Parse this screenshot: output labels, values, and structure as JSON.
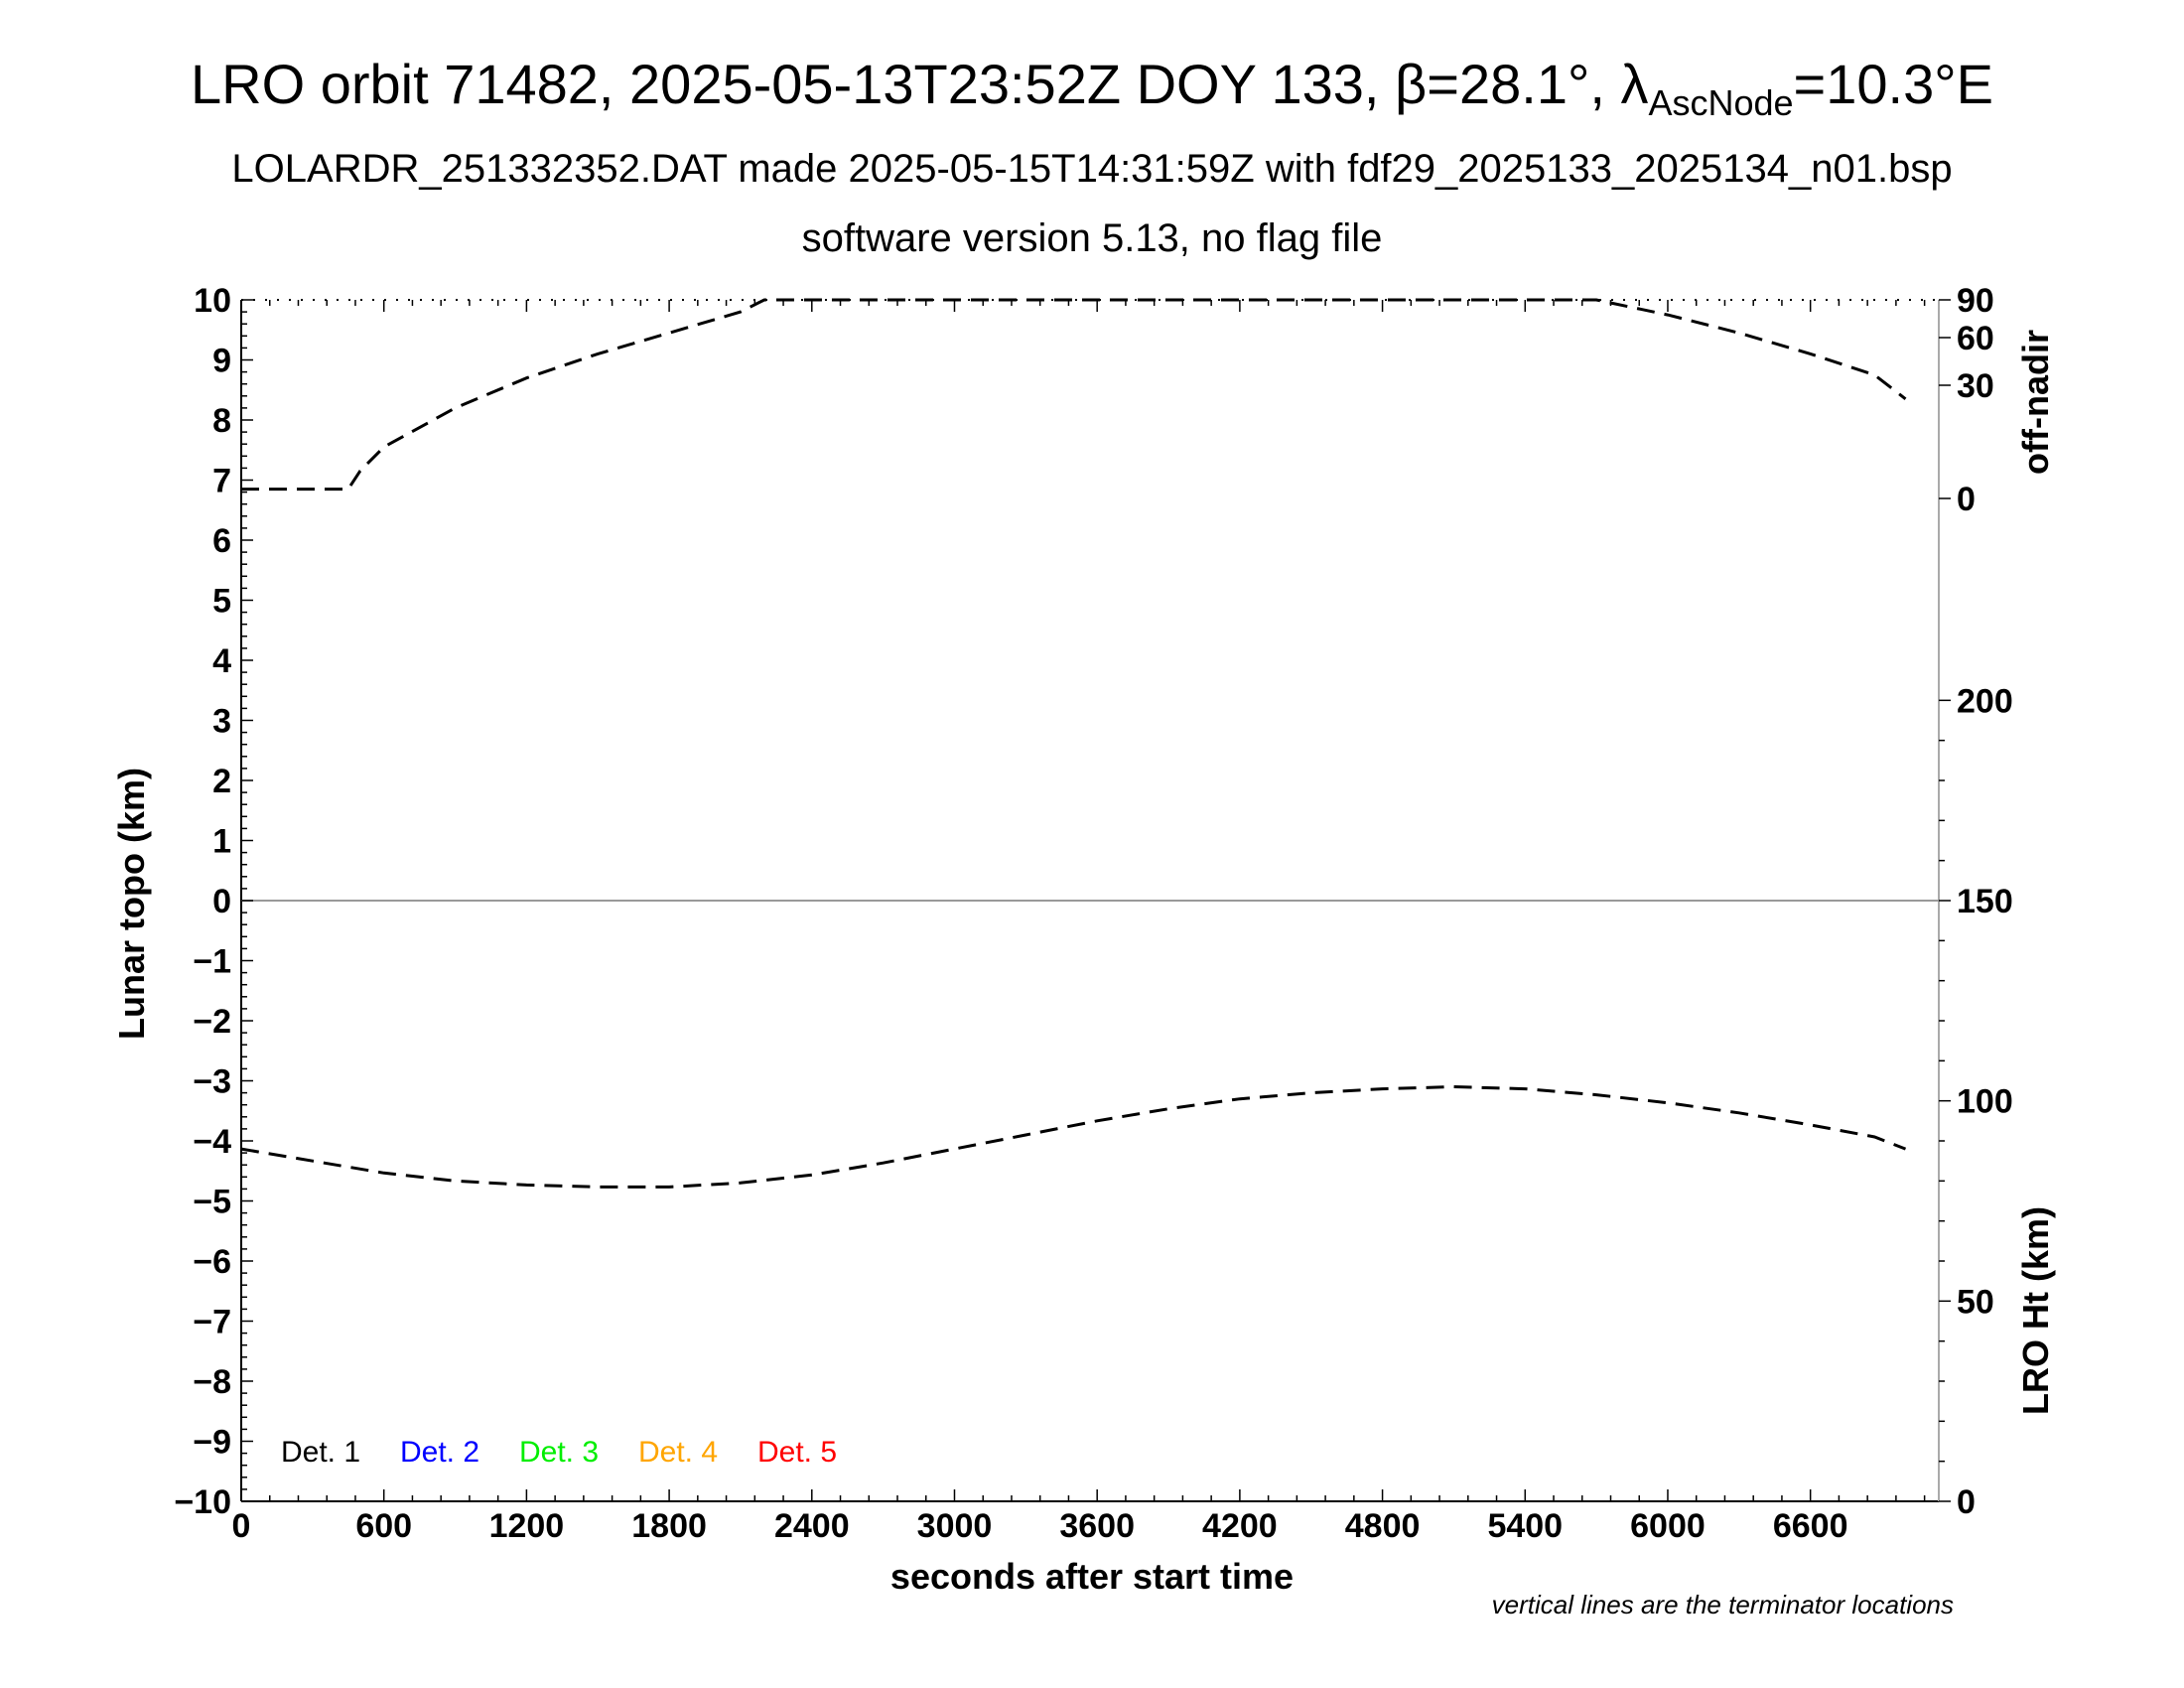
{
  "header": {
    "line1_prefix": "LRO orbit 71482, 2025-05-13T23:52Z DOY 133, β=28.1°, λ",
    "line1_sub": "AscNode",
    "line1_suffix": "=10.3°E",
    "line2": "LOLARDR_251332352.DAT made 2025-05-15T14:31:59Z with fdf29_2025133_2025134_n01.bsp",
    "line3": "software version 5.13, no flag file"
  },
  "chart_data": {
    "type": "line",
    "xlabel": "seconds after start time",
    "ylabel_left": "Lunar topo (km)",
    "ylabel_right_top": "off-nadir",
    "ylabel_right_bottom": "LRO Ht (km)",
    "xlim": [
      0,
      7140
    ],
    "ylim_left": [
      -10,
      10
    ],
    "x_ticks": [
      0,
      600,
      1200,
      1800,
      2400,
      3000,
      3600,
      4200,
      4800,
      5400,
      6000,
      6600
    ],
    "x_tick_labels": [
      "0",
      "600",
      "1200",
      "1800",
      "2400",
      "3000",
      "3600",
      "4200",
      "4800",
      "5400",
      "6000",
      "6600"
    ],
    "y_left_ticks": [
      10,
      9,
      8,
      7,
      6,
      5,
      4,
      3,
      2,
      1,
      0,
      -1,
      -2,
      -3,
      -4,
      -5,
      -6,
      -7,
      -8,
      -9,
      -10
    ],
    "y_left_tick_labels": [
      "10",
      "9",
      "8",
      "7",
      "6",
      "5",
      "4",
      "3",
      "2",
      "1",
      "0",
      "−1",
      "−2",
      "−3",
      "−4",
      "−5",
      "−6",
      "−7",
      "−8",
      "−9",
      "−10"
    ],
    "off_nadir_axis": {
      "ticks": [
        90,
        60,
        30,
        0
      ],
      "tick_labels": [
        "90",
        "60",
        "30",
        "0"
      ]
    },
    "lro_ht_axis": {
      "ticks": [
        200,
        150,
        100,
        50,
        0
      ],
      "tick_labels": [
        "200",
        "150",
        "100",
        "50",
        "0"
      ],
      "range": [
        0,
        300
      ]
    },
    "legend": [
      {
        "label": "Det. 1",
        "color": "#000000"
      },
      {
        "label": "Det. 2",
        "color": "#0000ff"
      },
      {
        "label": "Det. 3",
        "color": "#00ee00"
      },
      {
        "label": "Det. 4",
        "color": "#ffa500"
      },
      {
        "label": "Det. 5",
        "color": "#ff0000"
      }
    ],
    "series": [
      {
        "name": "off-nadir",
        "style": "dashed",
        "color": "#000000",
        "x": [
          0,
          450,
          500,
          600,
          900,
          1200,
          1500,
          1800,
          2100,
          2200,
          5700,
          6000,
          6300,
          6600,
          6870,
          7000
        ],
        "y": [
          6.85,
          6.85,
          7.15,
          7.55,
          8.2,
          8.7,
          9.1,
          9.45,
          9.8,
          10.0,
          10.0,
          9.75,
          9.45,
          9.1,
          8.75,
          8.35
        ]
      },
      {
        "name": "LRO Ht",
        "style": "dashed",
        "color": "#000000",
        "x": [
          0,
          300,
          600,
          900,
          1200,
          1500,
          1800,
          2100,
          2400,
          2700,
          3000,
          3300,
          3600,
          3900,
          4200,
          4500,
          4800,
          5100,
          5400,
          5700,
          6000,
          6300,
          6600,
          6870,
          7000
        ],
        "y": [
          88,
          85,
          82,
          80,
          79,
          78.5,
          78.5,
          79.5,
          81.5,
          84.5,
          88,
          91.5,
          95,
          98,
          100.5,
          102,
          103,
          103.5,
          103,
          101.5,
          99.5,
          97,
          94,
          91,
          88
        ]
      }
    ],
    "zero_line": 0,
    "note": "vertical lines are the terminator locations",
    "grid": false
  }
}
